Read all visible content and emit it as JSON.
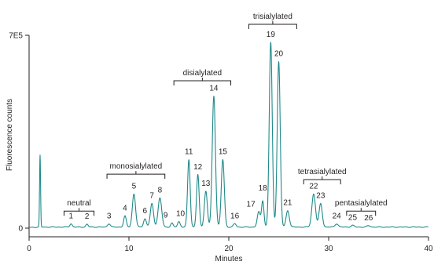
{
  "chart_data": {
    "type": "line",
    "title": "",
    "xlabel": "Minutes",
    "ylabel": "Fluorescence counts",
    "xlim": [
      0,
      40
    ],
    "ylim": [
      0,
      700000
    ],
    "x_ticks": [
      0,
      10,
      20,
      30,
      40
    ],
    "y_ticks": [
      {
        "value": 0,
        "label": "0"
      },
      {
        "value": 700000,
        "label": "7E5"
      }
    ],
    "grid": false,
    "legend": "none",
    "color": "#1f8a8a",
    "baseline": 4000,
    "series": [
      {
        "peaks": [
          {
            "label": "",
            "x": 1.1,
            "y": 260000,
            "w": 0.05
          },
          {
            "label": "1",
            "x": 4.2,
            "y": 12000,
            "w": 0.12
          },
          {
            "label": "2",
            "x": 5.8,
            "y": 10000,
            "w": 0.12
          },
          {
            "label": "3",
            "x": 8.0,
            "y": 12000,
            "w": 0.14
          },
          {
            "label": "4",
            "x": 9.6,
            "y": 40000,
            "w": 0.13
          },
          {
            "label": "5",
            "x": 10.5,
            "y": 120000,
            "w": 0.16
          },
          {
            "label": "6",
            "x": 11.6,
            "y": 30000,
            "w": 0.14
          },
          {
            "label": "7",
            "x": 12.3,
            "y": 85000,
            "w": 0.16
          },
          {
            "label": "8",
            "x": 13.1,
            "y": 105000,
            "w": 0.18
          },
          {
            "label": "9",
            "x": 14.3,
            "y": 14000,
            "w": 0.12
          },
          {
            "label": "10",
            "x": 15.0,
            "y": 20000,
            "w": 0.13
          },
          {
            "label": "11",
            "x": 16.0,
            "y": 245000,
            "w": 0.13
          },
          {
            "label": "12",
            "x": 16.9,
            "y": 190000,
            "w": 0.13
          },
          {
            "label": "13",
            "x": 17.7,
            "y": 130000,
            "w": 0.15
          },
          {
            "label": "14",
            "x": 18.5,
            "y": 475000,
            "w": 0.16
          },
          {
            "label": "15",
            "x": 19.4,
            "y": 245000,
            "w": 0.15
          },
          {
            "label": "16",
            "x": 20.6,
            "y": 12000,
            "w": 0.14
          },
          {
            "label": "17",
            "x": 23.0,
            "y": 55000,
            "w": 0.15
          },
          {
            "label": "18",
            "x": 23.4,
            "y": 95000,
            "w": 0.12
          },
          {
            "label": "19",
            "x": 24.2,
            "y": 670000,
            "w": 0.15
          },
          {
            "label": "20",
            "x": 25.0,
            "y": 600000,
            "w": 0.15
          },
          {
            "label": "21",
            "x": 25.9,
            "y": 60000,
            "w": 0.16
          },
          {
            "label": "22",
            "x": 28.5,
            "y": 120000,
            "w": 0.18
          },
          {
            "label": "23",
            "x": 29.2,
            "y": 85000,
            "w": 0.16
          },
          {
            "label": "24",
            "x": 30.8,
            "y": 12000,
            "w": 0.16
          },
          {
            "label": "25",
            "x": 32.4,
            "y": 6000,
            "w": 0.16
          },
          {
            "label": "26",
            "x": 34.0,
            "y": 5000,
            "w": 0.16
          }
        ]
      }
    ],
    "groups": [
      {
        "label": "neutral",
        "x_start": 3.5,
        "x_end": 6.5,
        "y": 62000
      },
      {
        "label": "monosialylated",
        "x_start": 7.8,
        "x_end": 13.6,
        "y": 196000
      },
      {
        "label": "disialylated",
        "x_start": 14.5,
        "x_end": 20.2,
        "y": 535000
      },
      {
        "label": "trisialylated",
        "x_start": 22.0,
        "x_end": 26.8,
        "y": 740000
      },
      {
        "label": "tetrasialylated",
        "x_start": 27.5,
        "x_end": 31.2,
        "y": 176000
      },
      {
        "label": "pentasialylated",
        "x_start": 31.8,
        "x_end": 34.7,
        "y": 62000
      }
    ]
  }
}
